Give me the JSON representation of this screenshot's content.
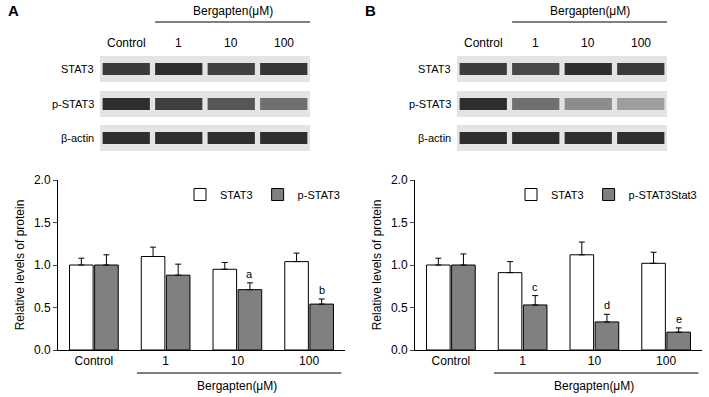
{
  "chart_data": [
    {
      "panel": "A",
      "type": "bar",
      "blot": {
        "treatment": "Bergapten(μM)",
        "lanes": [
          "Control",
          "1",
          "10",
          "100"
        ],
        "rows": [
          "STAT3",
          "p-STAT3",
          "β-actin"
        ]
      },
      "categories": [
        "Control",
        "1",
        "10",
        "100"
      ],
      "xlabel": "Bergapten(μM)",
      "ylabel": "Relative levels of protein",
      "series": [
        {
          "name": "STAT3",
          "color": "#ffffff",
          "values": [
            1.0,
            1.1,
            0.95,
            1.04
          ],
          "errors": [
            0.08,
            0.11,
            0.08,
            0.1
          ]
        },
        {
          "name": "p-STAT3",
          "color": "#808080",
          "values": [
            1.0,
            0.88,
            0.71,
            0.54
          ],
          "errors": [
            0.12,
            0.13,
            0.08,
            0.06
          ]
        }
      ],
      "annotations": [
        {
          "text": "a",
          "category": "10",
          "series": "p-STAT3"
        },
        {
          "text": "b",
          "category": "100",
          "series": "p-STAT3"
        }
      ],
      "ylim": [
        0,
        2
      ],
      "yticks": [
        {
          "value": 0,
          "label": "0.0"
        },
        {
          "value": 0.5,
          "label": "0.5"
        },
        {
          "value": 1,
          "label": "1.0"
        },
        {
          "value": 1.5,
          "label": "1.5"
        },
        {
          "value": 2,
          "label": "2.0"
        }
      ],
      "legend": "upper right"
    },
    {
      "panel": "B",
      "type": "bar",
      "blot": {
        "treatment": "Bergapten(μM)",
        "lanes": [
          "Control",
          "1",
          "10",
          "100"
        ],
        "rows": [
          "STAT3",
          "p-STAT3",
          "β-actin"
        ]
      },
      "categories": [
        "Control",
        "1",
        "10",
        "100"
      ],
      "xlabel": "Bergapten(μM)",
      "ylabel": "Relative levels of protein",
      "series": [
        {
          "name": "STAT3",
          "color": "#ffffff",
          "values": [
            1.0,
            0.91,
            1.12,
            1.02
          ],
          "errors": [
            0.08,
            0.13,
            0.15,
            0.13
          ]
        },
        {
          "name": "p-STAT3Stat3",
          "color": "#808080",
          "values": [
            1.0,
            0.53,
            0.33,
            0.21
          ],
          "errors": [
            0.13,
            0.11,
            0.09,
            0.05
          ]
        }
      ],
      "annotations": [
        {
          "text": "c",
          "category": "1",
          "series": "p-STAT3Stat3"
        },
        {
          "text": "d",
          "category": "10",
          "series": "p-STAT3Stat3"
        },
        {
          "text": "e",
          "category": "100",
          "series": "p-STAT3Stat3"
        }
      ],
      "ylim": [
        0,
        2
      ],
      "yticks": [
        {
          "value": 0,
          "label": "0.0"
        },
        {
          "value": 0.5,
          "label": "0.5"
        },
        {
          "value": 1,
          "label": "1.0"
        },
        {
          "value": 1.5,
          "label": "1.5"
        },
        {
          "value": 2,
          "label": "2.0"
        }
      ],
      "legend": "upper right"
    }
  ]
}
